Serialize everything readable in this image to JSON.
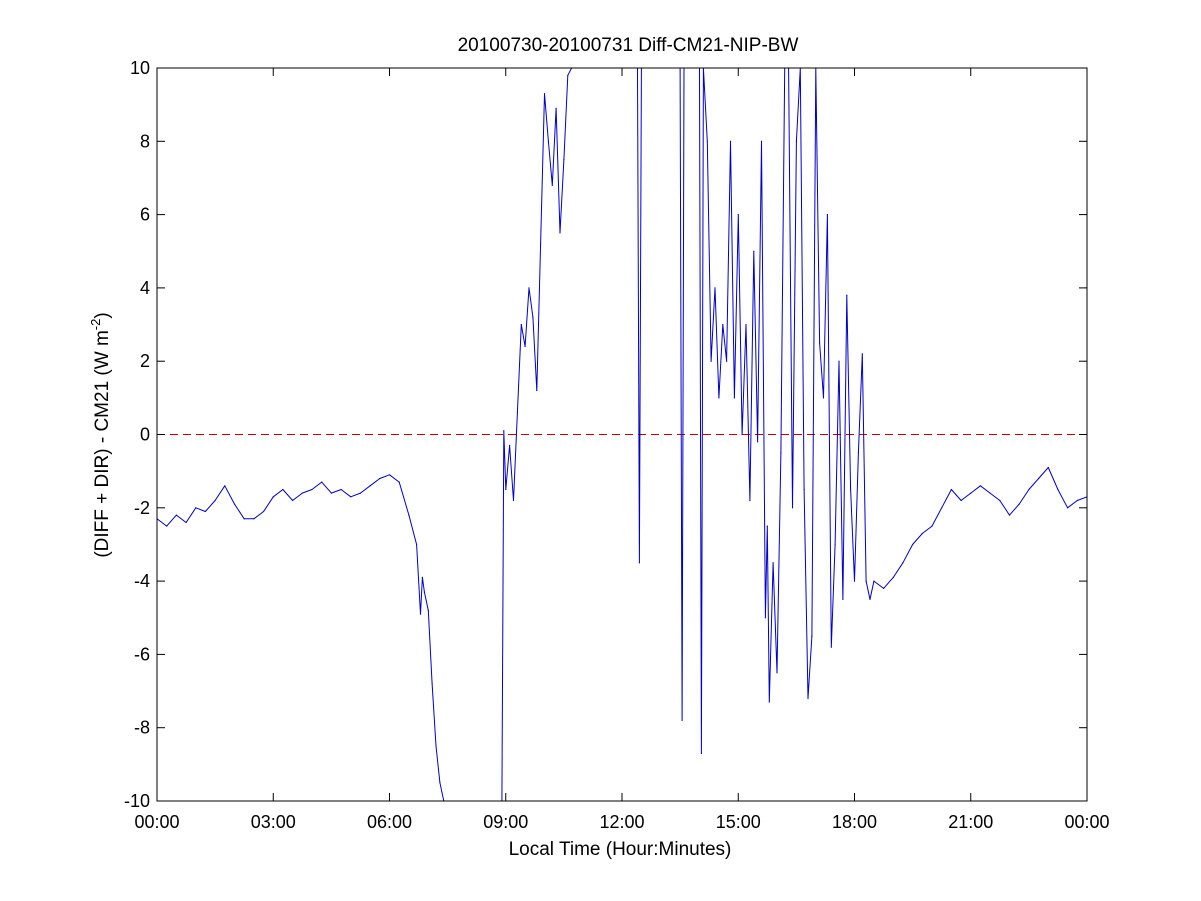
{
  "chart_data": {
    "type": "line",
    "title": "20100730-20100731 Diff-CM21-NIP-BW",
    "xlabel": "Local Time (Hour:Minutes)",
    "ylabel": {
      "main": "(DIFF + DIR) - CM21 (W m",
      "sup": "-2",
      "close": ")"
    },
    "xlim": [
      0,
      24
    ],
    "ylim": [
      -10,
      10
    ],
    "x_ticks": [
      0,
      3,
      6,
      9,
      12,
      15,
      18,
      21,
      24
    ],
    "x_tick_labels": [
      "00:00",
      "03:00",
      "06:00",
      "09:00",
      "12:00",
      "15:00",
      "18:00",
      "21:00",
      "00:00"
    ],
    "y_ticks": [
      10,
      8,
      6,
      4,
      2,
      0,
      -2,
      -4,
      -6,
      -8,
      -10
    ],
    "y_tick_labels": [
      "10",
      "8",
      "6",
      "4",
      "2",
      "0",
      "-2",
      "-4",
      "-6",
      "-8",
      "-10"
    ],
    "grid": false,
    "reference_line": {
      "y": 0,
      "style": "dashed",
      "color": "#c00000"
    },
    "series": [
      {
        "color": "#0000cc",
        "x": [
          0.0,
          0.25,
          0.5,
          0.75,
          1.0,
          1.25,
          1.5,
          1.75,
          2.0,
          2.25,
          2.5,
          2.75,
          3.0,
          3.25,
          3.5,
          3.75,
          4.0,
          4.25,
          4.5,
          4.75,
          5.0,
          5.25,
          5.5,
          5.75,
          6.0,
          6.25,
          6.5,
          6.7,
          6.8,
          6.85,
          6.9,
          7.0,
          7.1,
          7.2,
          7.3,
          7.4,
          8.9,
          8.95,
          9.0,
          9.1,
          9.2,
          9.3,
          9.4,
          9.5,
          9.6,
          9.7,
          9.8,
          9.9,
          10.0,
          10.1,
          10.2,
          10.3,
          10.4,
          10.5,
          10.6,
          10.7,
          12.4,
          12.45,
          12.5,
          12.55,
          13.5,
          13.55,
          13.6,
          14.0,
          14.05,
          14.1,
          14.2,
          14.3,
          14.4,
          14.5,
          14.6,
          14.7,
          14.8,
          14.9,
          15.0,
          15.1,
          15.2,
          15.3,
          15.4,
          15.5,
          15.6,
          15.7,
          15.75,
          15.8,
          15.9,
          16.0,
          16.1,
          16.2,
          16.3,
          16.4,
          16.5,
          16.6,
          16.7,
          16.8,
          16.9,
          17.0,
          17.1,
          17.2,
          17.3,
          17.4,
          17.5,
          17.6,
          17.7,
          17.8,
          17.9,
          18.0,
          18.1,
          18.2,
          18.3,
          18.4,
          18.5,
          18.75,
          19.0,
          19.25,
          19.5,
          19.75,
          20.0,
          20.25,
          20.5,
          20.75,
          21.0,
          21.25,
          21.5,
          21.75,
          22.0,
          22.25,
          22.5,
          22.75,
          23.0,
          23.25,
          23.5,
          23.75,
          24.0
        ],
        "y": [
          -2.3,
          -2.5,
          -2.2,
          -2.4,
          -2.0,
          -2.1,
          -1.8,
          -1.4,
          -1.9,
          -2.3,
          -2.3,
          -2.1,
          -1.7,
          -1.5,
          -1.8,
          -1.6,
          -1.5,
          -1.3,
          -1.6,
          -1.5,
          -1.7,
          -1.6,
          -1.4,
          -1.2,
          -1.1,
          -1.3,
          -2.2,
          -3.0,
          -4.9,
          -3.9,
          -4.3,
          -4.8,
          -6.8,
          -8.5,
          -9.5,
          -10.0,
          -10.0,
          0.1,
          -1.5,
          -0.3,
          -1.8,
          0.6,
          3.0,
          2.4,
          4.0,
          3.2,
          1.2,
          5.2,
          9.3,
          8.0,
          6.8,
          8.9,
          5.5,
          7.5,
          9.8,
          10.0,
          10.0,
          -3.5,
          10.0,
          10.0,
          10.0,
          -7.8,
          10.0,
          10.0,
          -8.7,
          10.0,
          8.0,
          2.0,
          4.0,
          1.0,
          3.0,
          2.0,
          8.0,
          1.0,
          6.0,
          0.0,
          3.0,
          -1.8,
          5.0,
          -0.2,
          8.0,
          -5.0,
          -2.5,
          -7.3,
          -3.5,
          -6.5,
          -0.5,
          10.0,
          10.0,
          -2.0,
          8.0,
          10.0,
          -1.5,
          -7.2,
          -5.5,
          10.0,
          2.5,
          1.0,
          6.0,
          -5.8,
          -3.0,
          2.0,
          -4.5,
          3.8,
          -1.5,
          -4.0,
          -0.5,
          2.2,
          -4.0,
          -4.5,
          -4.0,
          -4.2,
          -3.9,
          -3.5,
          -3.0,
          -2.7,
          -2.5,
          -2.0,
          -1.5,
          -1.8,
          -1.6,
          -1.4,
          -1.6,
          -1.8,
          -2.2,
          -1.9,
          -1.5,
          -1.2,
          -0.9,
          -1.5,
          -2.0,
          -1.8,
          -1.7
        ]
      }
    ]
  }
}
